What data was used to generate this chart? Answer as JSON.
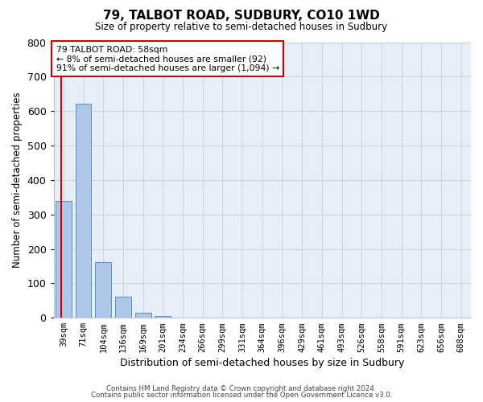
{
  "title": "79, TALBOT ROAD, SUDBURY, CO10 1WD",
  "subtitle": "Size of property relative to semi-detached houses in Sudbury",
  "xlabel": "Distribution of semi-detached houses by size in Sudbury",
  "ylabel": "Number of semi-detached properties",
  "footer1": "Contains HM Land Registry data © Crown copyright and database right 2024.",
  "footer2": "Contains public sector information licensed under the Open Government Licence v3.0.",
  "annotation_title": "79 TALBOT ROAD: 58sqm",
  "annotation_line2": "← 8% of semi-detached houses are smaller (92)",
  "annotation_line3": "91% of semi-detached houses are larger (1,094) →",
  "categories": [
    "39sqm",
    "71sqm",
    "104sqm",
    "136sqm",
    "169sqm",
    "201sqm",
    "234sqm",
    "266sqm",
    "299sqm",
    "331sqm",
    "364sqm",
    "396sqm",
    "429sqm",
    "461sqm",
    "493sqm",
    "526sqm",
    "558sqm",
    "591sqm",
    "623sqm",
    "656sqm",
    "688sqm"
  ],
  "values": [
    338,
    622,
    162,
    62,
    14,
    6,
    0,
    0,
    0,
    0,
    0,
    0,
    0,
    0,
    0,
    0,
    0,
    0,
    0,
    0,
    0
  ],
  "bar_color": "#aec6e8",
  "bar_edge_color": "#5a8fc2",
  "highlight_line_color": "#cc0000",
  "annotation_box_edge_color": "#cc0000",
  "grid_color": "#c8d4e8",
  "ylim": [
    0,
    800
  ],
  "yticks": [
    0,
    100,
    200,
    300,
    400,
    500,
    600,
    700,
    800
  ],
  "background_color": "#ffffff",
  "plot_bg_color": "#e8eef8"
}
